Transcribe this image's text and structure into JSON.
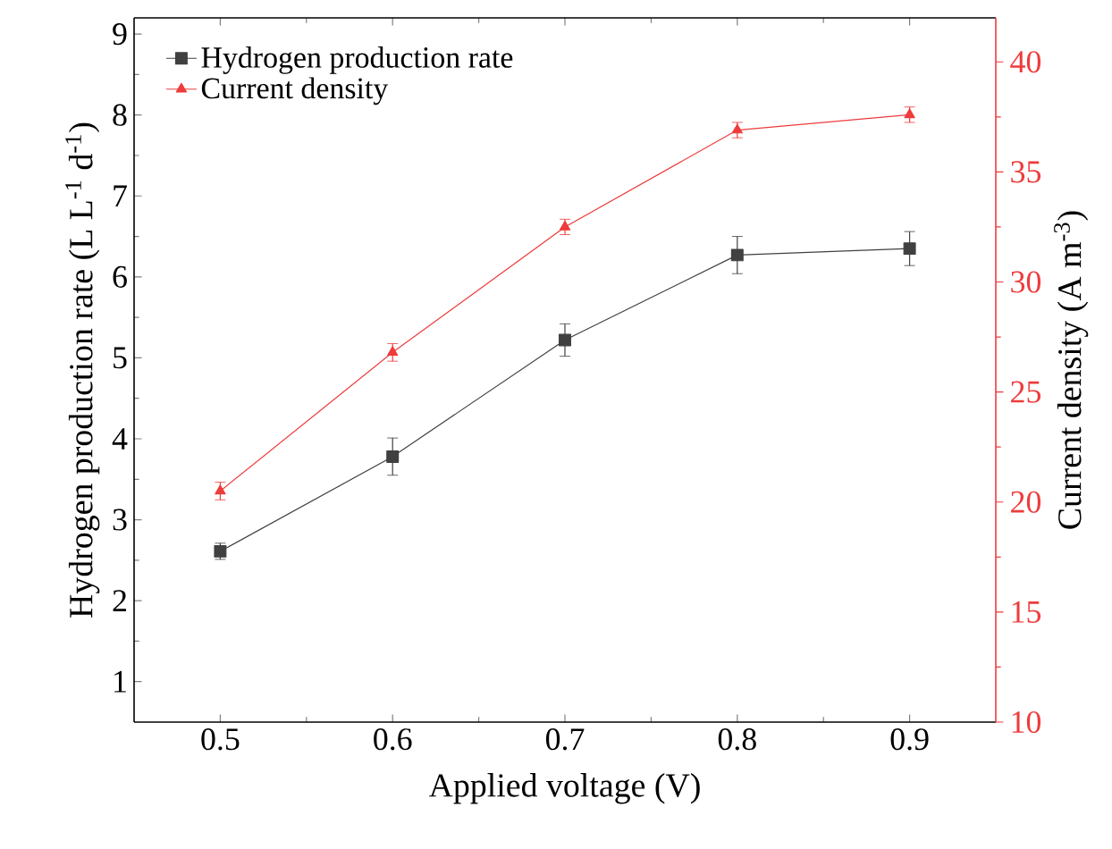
{
  "chart_data": {
    "type": "line",
    "xlabel": "Applied voltage (V)",
    "ylabel": "Hydrogen production rate (L L$^{-1}$ d$^{-1}$)",
    "y2label": "Current density (A m$^{-3}$)",
    "x": [
      0.5,
      0.6,
      0.7,
      0.8,
      0.9
    ],
    "series": [
      {
        "name": "Hydrogen production rate",
        "color": "#404040",
        "marker": "square",
        "values": [
          2.61,
          3.78,
          5.22,
          6.27,
          6.35
        ],
        "errors": [
          0.1,
          0.23,
          0.2,
          0.23,
          0.21
        ]
      },
      {
        "name": "Current density",
        "color": "#ee3b3b",
        "marker": "triangle",
        "axis": "y2",
        "values": [
          20.5,
          26.8,
          32.5,
          36.9,
          37.6
        ],
        "errors": [
          0.4,
          0.4,
          0.35,
          0.35,
          0.35
        ]
      }
    ],
    "xlim": [
      0.45,
      0.95
    ],
    "ylim": [
      0.5,
      9.2
    ],
    "y2lim": [
      10,
      42
    ],
    "xticks": [
      0.5,
      0.6,
      0.7,
      0.8,
      0.9
    ],
    "yticks": [
      1,
      2,
      3,
      4,
      5,
      6,
      7,
      8,
      9
    ],
    "y2ticks": [
      10,
      15,
      20,
      25,
      30,
      35,
      40
    ],
    "legend": "top left"
  }
}
